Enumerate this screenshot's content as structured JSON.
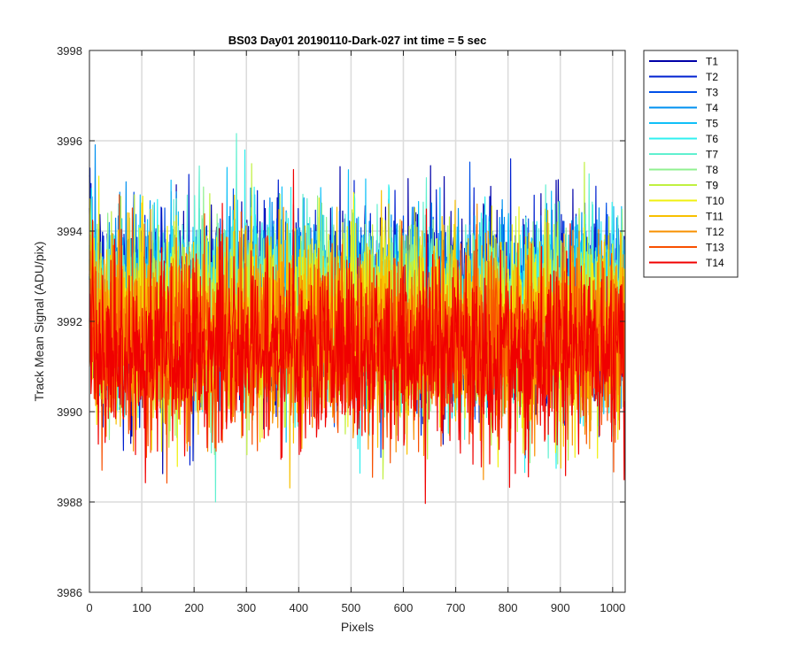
{
  "chart_data": {
    "type": "line",
    "title": "BS03 Day01 20190110-Dark-027 int time = 5 sec",
    "xlabel": "Pixels",
    "ylabel": "Track Mean Signal (ADU/pix)",
    "xlim": [
      0,
      1024
    ],
    "ylim": [
      3986,
      3998
    ],
    "xticks": [
      0,
      100,
      200,
      300,
      400,
      500,
      600,
      700,
      800,
      900,
      1000
    ],
    "yticks": [
      3986,
      3988,
      3990,
      3992,
      3994,
      3996,
      3998
    ],
    "grid": true,
    "legend_position": "outside-top-right",
    "n_points": 1024,
    "series": [
      {
        "name": "T1",
        "color": "#0000A8",
        "mean": 3992.3,
        "spread": 1.05
      },
      {
        "name": "T2",
        "color": "#0020D0",
        "mean": 3992.3,
        "spread": 1.05
      },
      {
        "name": "T3",
        "color": "#0050E8",
        "mean": 3992.3,
        "spread": 1.0
      },
      {
        "name": "T4",
        "color": "#0090F0",
        "mean": 3992.3,
        "spread": 1.0
      },
      {
        "name": "T5",
        "color": "#10C0F8",
        "mean": 3992.2,
        "spread": 1.0
      },
      {
        "name": "T6",
        "color": "#30F0F0",
        "mean": 3992.2,
        "spread": 1.0
      },
      {
        "name": "T7",
        "color": "#60F0D0",
        "mean": 3992.2,
        "spread": 1.0
      },
      {
        "name": "T8",
        "color": "#90F090",
        "mean": 3992.1,
        "spread": 1.0
      },
      {
        "name": "T9",
        "color": "#C0F040",
        "mean": 3992.0,
        "spread": 1.0
      },
      {
        "name": "T10",
        "color": "#F0F010",
        "mean": 3991.9,
        "spread": 1.0
      },
      {
        "name": "T11",
        "color": "#F8C000",
        "mean": 3991.8,
        "spread": 1.0
      },
      {
        "name": "T12",
        "color": "#F89000",
        "mean": 3991.7,
        "spread": 1.0
      },
      {
        "name": "T13",
        "color": "#F85000",
        "mean": 3991.5,
        "spread": 1.0
      },
      {
        "name": "T14",
        "color": "#F00000",
        "mean": 3991.3,
        "spread": 1.05
      }
    ]
  }
}
